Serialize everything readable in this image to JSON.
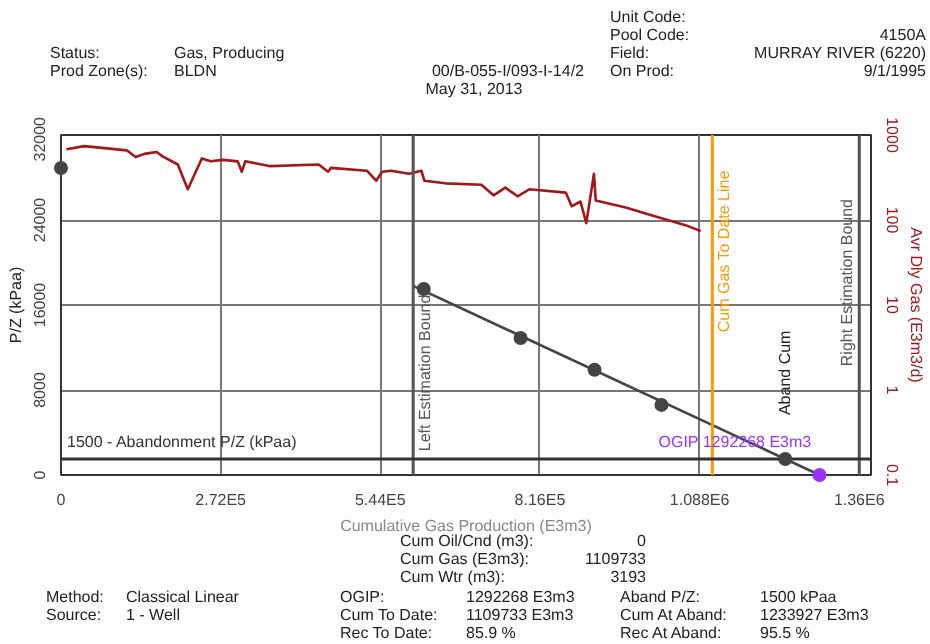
{
  "chart_data": {
    "type": "scatter",
    "title": "00/B-055-I/093-I-14/2",
    "subtitle": "May 31, 2013",
    "xlabel": "Cumulative Gas Production (E3m3)",
    "ylabel": "P/Z (kPaa)",
    "y2label": "Avr Dly Gas (E3m3/d)",
    "xlim": [
      0,
      1380000
    ],
    "xticks": [
      0,
      {
        "value": 272000,
        "label": "2.72E5"
      },
      {
        "value": 544000,
        "label": "5.44E5"
      },
      {
        "value": 816000,
        "label": "8.16E5"
      },
      {
        "value": 1088000,
        "label": "1.088E6"
      },
      {
        "value": 1360000,
        "label": "1.36E6"
      }
    ],
    "ylim": [
      0,
      32000
    ],
    "yticks": [
      0,
      8000,
      16000,
      24000,
      32000
    ],
    "y2lim": [
      0.1,
      1000
    ],
    "y2ticks": [
      0.1,
      1,
      10,
      100,
      1000
    ],
    "log": "y2",
    "grid": true,
    "marker": "circle",
    "series": [
      {
        "color": "#444444",
        "x": [
          0,
          618000,
          783000,
          909000,
          1023000
        ],
        "values": [
          28900,
          17500,
          12900,
          9900,
          6600
        ]
      },
      {
        "color": "#444444",
        "x": [
          1233927
        ],
        "values": [
          1500
        ]
      },
      {
        "color": "#9933ff",
        "x": [
          1292268
        ],
        "values": [
          0
        ]
      },
      {
        "type": "line",
        "marker": "none",
        "color": "#444444",
        "x": [
          600000,
          1292268
        ],
        "values": [
          17800,
          0
        ]
      },
      {
        "type": "line",
        "marker": "none",
        "axis": "y2",
        "color": "#a01818",
        "x": [
          9200,
          40000,
          112000,
          127000,
          142000,
          163000,
          173000,
          199000,
          216000,
          240000,
          255000,
          276000,
          301000,
          308000,
          314000,
          357000,
          439000,
          455000,
          460000,
          521000,
          537000,
          547000,
          562000,
          593000,
          614000,
          619000,
          655000,
          716000,
          737000,
          757000,
          778000,
          798000,
          860000,
          870000,
          885000,
          895000,
          908000,
          911000,
          962000,
          1013000,
          1064000,
          1090000
        ],
        "values": [
          680,
          740,
          660,
          550,
          600,
          630,
          560,
          450,
          230,
          530,
          490,
          510,
          490,
          370,
          490,
          430,
          450,
          370,
          410,
          380,
          290,
          370,
          380,
          350,
          380,
          290,
          270,
          260,
          195,
          240,
          190,
          230,
          210,
          145,
          165,
          92,
          350,
          170,
          140,
          110,
          87,
          74
        ]
      }
    ],
    "ref_lines": [
      {
        "axis": "x",
        "value": 600000,
        "label": "Left Estimation Bound",
        "color": "#555555"
      },
      {
        "axis": "x",
        "value": 1109733,
        "label": "Cum Gas To Date Line",
        "color": "#ff9900"
      },
      {
        "axis": "x",
        "value": 1360000,
        "label": "Right Estimation Bound",
        "color": "#555555"
      },
      {
        "axis": "y",
        "value": 1500,
        "label": "1500 - Abandonment P/Z (kPaa)",
        "color": "#333333"
      }
    ],
    "annotations": [
      "Status:",
      "Gas, Producing",
      "Prod Zone(s):",
      "BLDN",
      "Unit Code:",
      "Pool Code:",
      "4150A",
      "Field:",
      "MURRAY RIVER (6220)",
      "On Prod:",
      "9/1/1995",
      "Cum Oil/Cnd (m3):",
      "0",
      "Cum Gas (E3m3):",
      "1109733",
      "Cum Wtr (m3):",
      "3193",
      "Method:",
      "Classical Linear",
      "Source:",
      "1 - Well",
      "OGIP:",
      "1292268 E3m3",
      "Cum To Date:",
      "1109733 E3m3",
      "Rec To Date:",
      "85.9 %",
      "Aband P/Z:",
      "1500 kPaa",
      "Cum At Aband:",
      "1233927 E3m3",
      "Rec At Aband:",
      "95.5 %",
      {
        "text": "Aband Cum",
        "x": 1233927,
        "y": 1500
      },
      {
        "text": "OGIP 1292268 E3m3",
        "x": 1292268,
        "y": 0
      }
    ]
  }
}
